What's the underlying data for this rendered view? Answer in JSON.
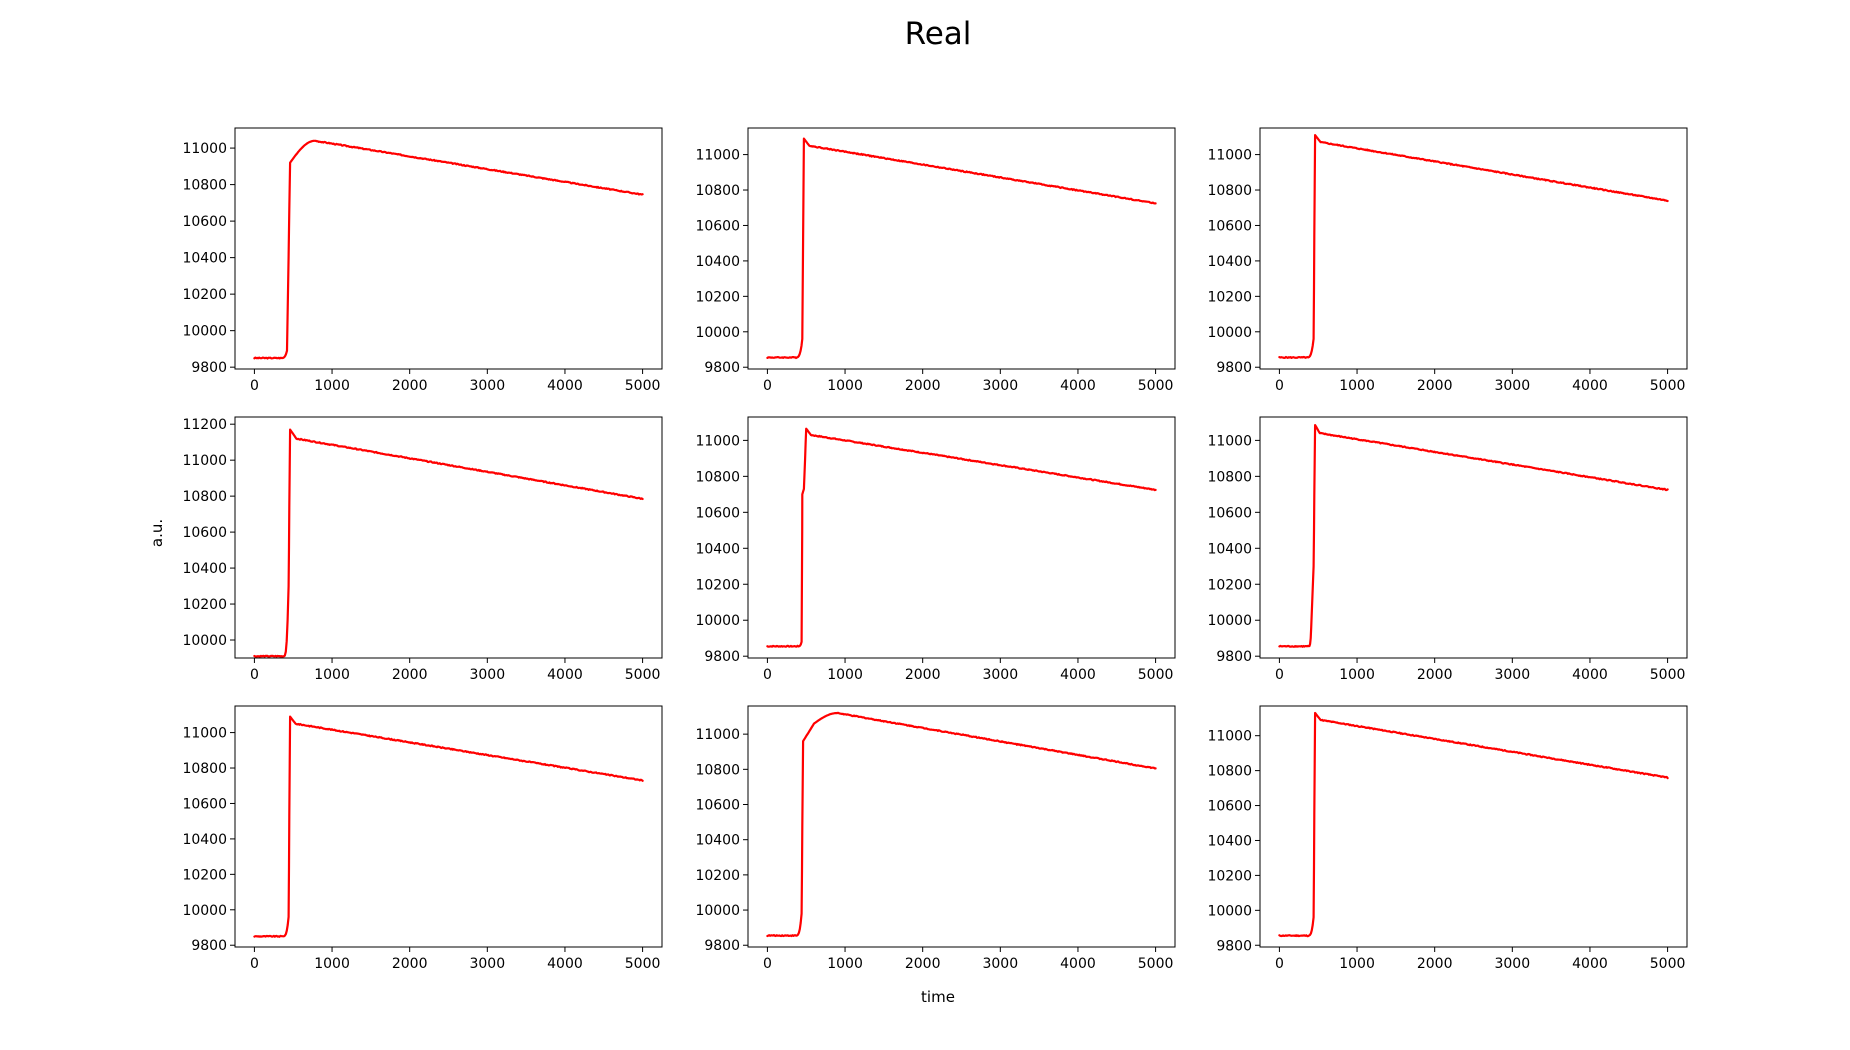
{
  "figure": {
    "title": "Real",
    "xlabel": "time",
    "ylabel": "a.u.",
    "line_color": "#ff0000"
  },
  "chart_data": [
    {
      "type": "line",
      "xlim": [
        -250,
        5250
      ],
      "ylim": [
        9790,
        11110
      ],
      "xticks": [
        0,
        1000,
        2000,
        3000,
        4000,
        5000
      ],
      "yticks": [
        9800,
        10000,
        10200,
        10400,
        10600,
        10800,
        11000
      ],
      "baseline": 9850,
      "onset": 360,
      "rise_end": 460,
      "peak": 11040,
      "peak_time": 780,
      "end_value": 10745,
      "overshoot": "round",
      "series": [
        {
          "x": [
            0,
            350,
            420,
            460,
            780,
            5000
          ],
          "y": [
            9850,
            9850,
            9890,
            10920,
            11040,
            10745
          ]
        }
      ]
    },
    {
      "type": "line",
      "xlim": [
        -250,
        5250
      ],
      "ylim": [
        9790,
        11150
      ],
      "xticks": [
        0,
        1000,
        2000,
        3000,
        4000,
        5000
      ],
      "yticks": [
        9800,
        10000,
        10200,
        10400,
        10600,
        10800,
        11000
      ],
      "baseline": 9855,
      "onset": 370,
      "rise_end": 470,
      "peak": 11090,
      "peak_time": 470,
      "end_value": 10725,
      "overshoot": "spike",
      "series": [
        {
          "x": [
            0,
            370,
            450,
            470,
            540,
            5000
          ],
          "y": [
            9855,
            9855,
            9960,
            11090,
            11050,
            10725
          ]
        }
      ]
    },
    {
      "type": "line",
      "xlim": [
        -250,
        5250
      ],
      "ylim": [
        9790,
        11150
      ],
      "xticks": [
        0,
        1000,
        2000,
        3000,
        4000,
        5000
      ],
      "yticks": [
        9800,
        10000,
        10200,
        10400,
        10600,
        10800,
        11000
      ],
      "baseline": 9855,
      "onset": 360,
      "rise_end": 460,
      "peak": 11110,
      "peak_time": 460,
      "end_value": 10740,
      "overshoot": "spike",
      "series": [
        {
          "x": [
            0,
            360,
            440,
            460,
            530,
            5000
          ],
          "y": [
            9855,
            9855,
            9960,
            11110,
            11070,
            10740
          ]
        }
      ]
    },
    {
      "type": "line",
      "xlim": [
        -250,
        5250
      ],
      "ylim": [
        9900,
        11240
      ],
      "xticks": [
        0,
        1000,
        2000,
        3000,
        4000,
        5000
      ],
      "yticks": [
        10000,
        10200,
        10400,
        10600,
        10800,
        11000,
        11200
      ],
      "baseline": 9910,
      "onset": 380,
      "rise_end": 460,
      "peak": 11170,
      "peak_time": 460,
      "end_value": 10785,
      "overshoot": "spike",
      "series": [
        {
          "x": [
            0,
            380,
            440,
            460,
            540,
            5000
          ],
          "y": [
            9910,
            9910,
            10300,
            11170,
            11120,
            10785
          ]
        }
      ]
    },
    {
      "type": "line",
      "xlim": [
        -250,
        5250
      ],
      "ylim": [
        9790,
        11130
      ],
      "xticks": [
        0,
        1000,
        2000,
        3000,
        4000,
        5000
      ],
      "yticks": [
        9800,
        10000,
        10200,
        10400,
        10600,
        10800,
        11000
      ],
      "baseline": 9855,
      "onset": 400,
      "rise_end": 500,
      "peak": 11065,
      "peak_time": 500,
      "end_value": 10725,
      "overshoot": "spike",
      "series": [
        {
          "x": [
            0,
            400,
            440,
            450,
            470,
            500,
            560,
            5000
          ],
          "y": [
            9855,
            9855,
            9880,
            10700,
            10730,
            11065,
            11030,
            10725
          ]
        }
      ]
    },
    {
      "type": "line",
      "xlim": [
        -250,
        5250
      ],
      "ylim": [
        9790,
        11130
      ],
      "xticks": [
        0,
        1000,
        2000,
        3000,
        4000,
        5000
      ],
      "yticks": [
        9800,
        10000,
        10200,
        10400,
        10600,
        10800,
        11000
      ],
      "baseline": 9855,
      "onset": 380,
      "rise_end": 460,
      "peak": 11085,
      "peak_time": 460,
      "end_value": 10725,
      "overshoot": "spike",
      "series": [
        {
          "x": [
            0,
            380,
            410,
            440,
            460,
            520,
            5000
          ],
          "y": [
            9855,
            9855,
            9960,
            10300,
            11085,
            11040,
            10725
          ]
        }
      ]
    },
    {
      "type": "line",
      "xlim": [
        -250,
        5250
      ],
      "ylim": [
        9790,
        11150
      ],
      "xticks": [
        0,
        1000,
        2000,
        3000,
        4000,
        5000
      ],
      "yticks": [
        9800,
        10000,
        10200,
        10400,
        10600,
        10800,
        11000
      ],
      "baseline": 9850,
      "onset": 370,
      "rise_end": 460,
      "peak": 11090,
      "peak_time": 460,
      "end_value": 10730,
      "overshoot": "spike",
      "series": [
        {
          "x": [
            0,
            370,
            440,
            460,
            530,
            5000
          ],
          "y": [
            9850,
            9850,
            9960,
            11090,
            11050,
            10730
          ]
        }
      ]
    },
    {
      "type": "line",
      "xlim": [
        -250,
        5250
      ],
      "ylim": [
        9790,
        11160
      ],
      "xticks": [
        0,
        1000,
        2000,
        3000,
        4000,
        5000
      ],
      "yticks": [
        9800,
        10000,
        10200,
        10400,
        10600,
        10800,
        11000
      ],
      "baseline": 9855,
      "onset": 370,
      "rise_end": 460,
      "peak": 11120,
      "peak_time": 900,
      "end_value": 10805,
      "overshoot": "round",
      "series": [
        {
          "x": [
            0,
            370,
            440,
            460,
            600,
            900,
            5000
          ],
          "y": [
            9855,
            9855,
            9980,
            10960,
            11060,
            11120,
            10805
          ]
        }
      ]
    },
    {
      "type": "line",
      "xlim": [
        -250,
        5250
      ],
      "ylim": [
        9790,
        11170
      ],
      "xticks": [
        0,
        1000,
        2000,
        3000,
        4000,
        5000
      ],
      "yticks": [
        9800,
        10000,
        10200,
        10400,
        10600,
        10800,
        11000
      ],
      "baseline": 9855,
      "onset": 370,
      "rise_end": 460,
      "peak": 11130,
      "peak_time": 460,
      "end_value": 10760,
      "overshoot": "spike",
      "series": [
        {
          "x": [
            0,
            370,
            440,
            460,
            530,
            5000
          ],
          "y": [
            9855,
            9855,
            9960,
            11130,
            11090,
            10760
          ]
        }
      ]
    }
  ]
}
